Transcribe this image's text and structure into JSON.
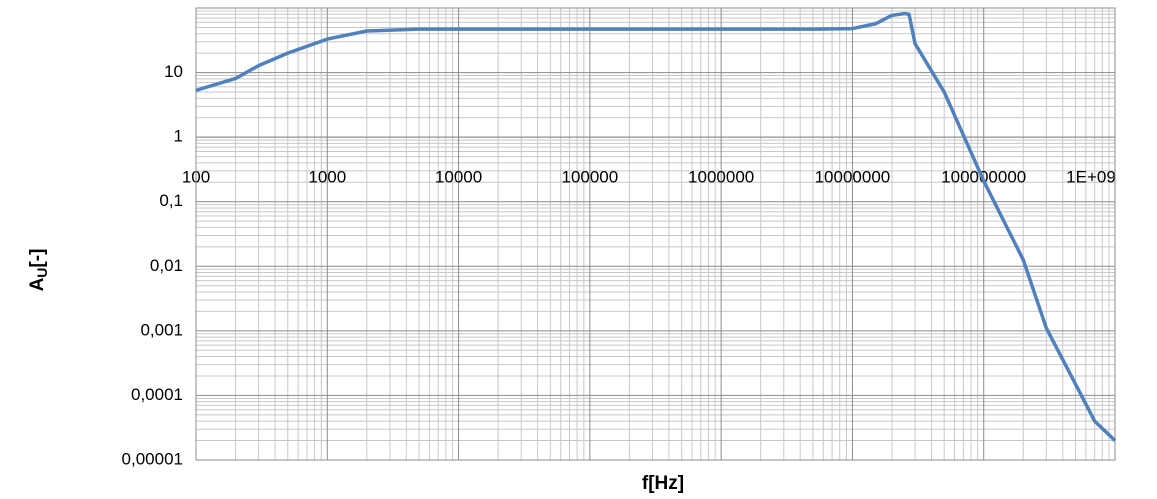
{
  "chart_data": {
    "type": "line",
    "xlabel": "f[Hz]",
    "ylabel": [
      "A",
      "U",
      "[-]"
    ],
    "x": [
      100,
      200,
      300,
      500,
      1000,
      2000,
      5000,
      10000,
      100000,
      1000000,
      5000000,
      10000000,
      15000000,
      20000000,
      25000000,
      27000000,
      30000000,
      50000000,
      100000000,
      200000000,
      300000000,
      500000000,
      700000000,
      1000000000
    ],
    "series": [
      {
        "name": "A_U",
        "color": "#4f81bd",
        "values": [
          5.3,
          8.1,
          12.8,
          20,
          33,
          44,
          47,
          47,
          47,
          47,
          47,
          48,
          57,
          77,
          82,
          80,
          28,
          5,
          0.21,
          0.0126,
          0.0011,
          0.00015,
          4e-05,
          2e-05
        ]
      }
    ],
    "log_x": true,
    "log_y": true,
    "grid": true,
    "minor_grid": true,
    "xlim": [
      100,
      1000000000
    ],
    "ylim": [
      1e-05,
      100
    ],
    "x_axis_crosses": 1,
    "xticks": [
      100,
      1000,
      10000,
      100000,
      1000000,
      10000000,
      100000000,
      {
        "value": 1000000000,
        "label": "1E+09"
      }
    ],
    "yticks": [
      {
        "value": 1e-05,
        "label": "0,00001"
      },
      {
        "value": 0.0001,
        "label": "0,0001"
      },
      {
        "value": 0.001,
        "label": "0,001"
      },
      {
        "value": 0.01,
        "label": "0,01"
      },
      {
        "value": 0.1,
        "label": "0,1"
      },
      1,
      10
    ]
  }
}
